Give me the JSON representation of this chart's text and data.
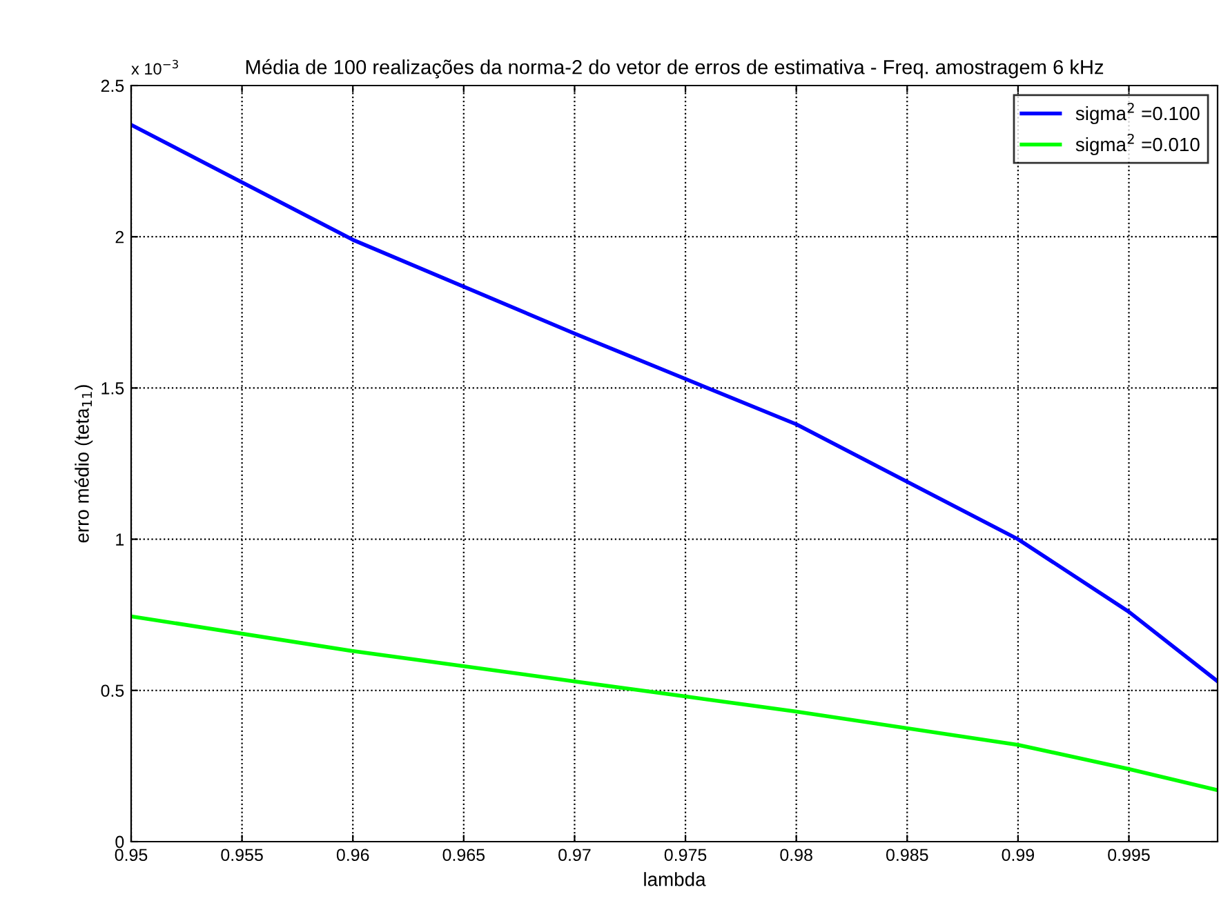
{
  "chart_data": {
    "type": "line",
    "title": "Média de 100 realizações da norma-2 do vetor de erros de estimativa - Freq. amostragem 6 kHz",
    "xlabel": "lambda",
    "ylabel": "erro médio (teta$_{11}$)",
    "annotations": [
      "x 10$^{−3}$"
    ],
    "x": [
      0.95,
      0.96,
      0.97,
      0.975,
      0.98,
      0.99,
      0.995,
      0.999
    ],
    "series": [
      {
        "name": "sigma$^{2}$ =0.100",
        "color": "#0000ff",
        "values": [
          2.37,
          1.99,
          1.68,
          1.53,
          1.38,
          1.0,
          0.76,
          0.53
        ]
      },
      {
        "name": "sigma$^{2}$ =0.010",
        "color": "#00ff00",
        "values": [
          0.745,
          0.63,
          0.53,
          0.48,
          0.43,
          0.32,
          0.24,
          0.17
        ]
      }
    ],
    "xlim": [
      0.95,
      0.999
    ],
    "xticks": [
      0.95,
      0.955,
      0.96,
      0.965,
      0.97,
      0.975,
      0.98,
      0.985,
      0.99,
      0.995
    ],
    "ylim": [
      0,
      2.5
    ],
    "yticks": [
      0,
      0.5,
      1,
      1.5,
      2,
      2.5
    ],
    "grid": true,
    "legend": "top right",
    "line_style": "solid",
    "marker": "none"
  }
}
